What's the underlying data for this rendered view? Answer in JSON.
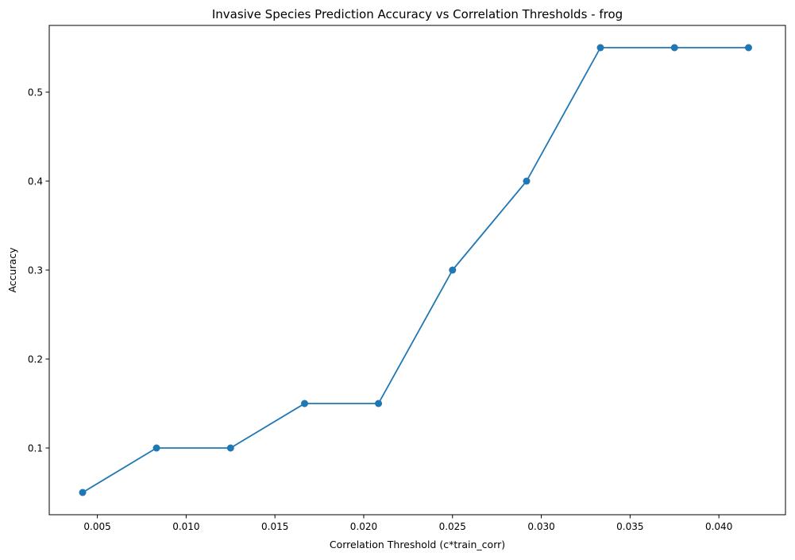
{
  "chart_data": {
    "type": "line",
    "title": "Invasive Species Prediction Accuracy vs Correlation Thresholds - frog",
    "xlabel": "Correlation Threshold (c*train_corr)",
    "ylabel": "Accuracy",
    "xlim": [
      0.00229,
      0.04375
    ],
    "ylim": [
      0.025,
      0.575
    ],
    "x_ticks": [
      {
        "value": 0.005,
        "label": "0.005"
      },
      {
        "value": 0.01,
        "label": "0.010"
      },
      {
        "value": 0.015,
        "label": "0.015"
      },
      {
        "value": 0.02,
        "label": "0.020"
      },
      {
        "value": 0.025,
        "label": "0.025"
      },
      {
        "value": 0.03,
        "label": "0.030"
      },
      {
        "value": 0.035,
        "label": "0.035"
      },
      {
        "value": 0.04,
        "label": "0.040"
      }
    ],
    "y_ticks": [
      {
        "value": 0.1,
        "label": "0.1"
      },
      {
        "value": 0.2,
        "label": "0.2"
      },
      {
        "value": 0.3,
        "label": "0.3"
      },
      {
        "value": 0.4,
        "label": "0.4"
      },
      {
        "value": 0.5,
        "label": "0.5"
      }
    ],
    "grid": false,
    "series": [
      {
        "color": "#1f77b4",
        "marker": "circle",
        "x": [
          0.00417,
          0.00833,
          0.0125,
          0.01667,
          0.02083,
          0.025,
          0.02917,
          0.03333,
          0.0375,
          0.04167
        ],
        "y": [
          0.05,
          0.1,
          0.1,
          0.15,
          0.15,
          0.3,
          0.4,
          0.55,
          0.55,
          0.55
        ]
      }
    ]
  }
}
